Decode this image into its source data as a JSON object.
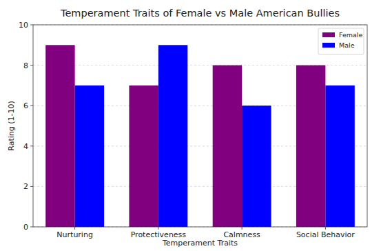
{
  "chart_data": {
    "type": "bar",
    "title": "Temperament Traits of Female vs Male American Bullies",
    "x_label": "Temperament Traits",
    "y_label": "Rating (1-10)",
    "categories": [
      "Nurturing",
      "Protectiveness",
      "Calmness",
      "Social Behavior"
    ],
    "series": [
      {
        "name": "Female",
        "color": "#800080",
        "values": [
          9,
          7,
          8,
          8
        ]
      },
      {
        "name": "Male",
        "color": "#0000ff",
        "values": [
          7,
          9,
          6,
          7
        ]
      }
    ],
    "ylim": [
      0,
      10
    ],
    "yticks": [
      0,
      2,
      4,
      6,
      8,
      10
    ],
    "grid": true,
    "legend": "upper right"
  }
}
